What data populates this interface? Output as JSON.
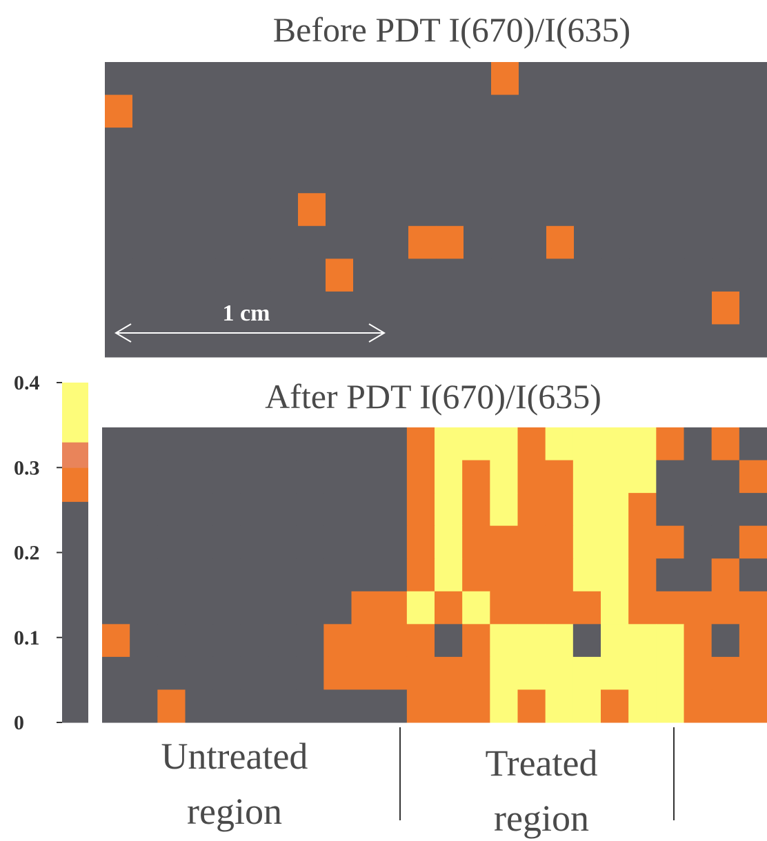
{
  "chart_data": [
    {
      "type": "heatmap",
      "title": "Before PDT  I(670)/I(635)",
      "annotation": "1 cm",
      "zlim": [
        0,
        0.4
      ],
      "z": [
        [
          0.05,
          0.05,
          0.05,
          0.05,
          0.05,
          0.05,
          0.05,
          0.05,
          0.05,
          0.05,
          0.05,
          0.05,
          0.05,
          0.05,
          0.29,
          0.05,
          0.05,
          0.2,
          0.05,
          0.05,
          0.2,
          0.05,
          0.05,
          0.05
        ],
        [
          0.28,
          0.05,
          0.05,
          0.05,
          0.05,
          0.05,
          0.05,
          0.05,
          0.05,
          0.05,
          0.05,
          0.05,
          0.05,
          0.05,
          0.05,
          0.05,
          0.05,
          0.05,
          0.05,
          0.05,
          0.05,
          0.05,
          0.05,
          0.05
        ],
        [
          0.05,
          0.05,
          0.05,
          0.05,
          0.05,
          0.05,
          0.05,
          0.05,
          0.05,
          0.05,
          0.05,
          0.05,
          0.05,
          0.05,
          0.05,
          0.05,
          0.05,
          0.05,
          0.05,
          0.05,
          0.05,
          0.05,
          0.05,
          0.05
        ],
        [
          0.05,
          0.05,
          0.05,
          0.05,
          0.05,
          0.05,
          0.05,
          0.05,
          0.05,
          0.05,
          0.05,
          0.05,
          0.05,
          0.05,
          0.2,
          0.05,
          0.05,
          0.05,
          0.05,
          0.05,
          0.05,
          0.05,
          0.05,
          0.05
        ],
        [
          0.05,
          0.05,
          0.05,
          0.05,
          0.05,
          0.05,
          0.05,
          0.28,
          0.05,
          0.05,
          0.05,
          0.05,
          0.05,
          0.05,
          0.05,
          0.05,
          0.05,
          0.05,
          0.05,
          0.05,
          0.05,
          0.05,
          0.05,
          0.05
        ],
        [
          0.05,
          0.05,
          0.05,
          0.05,
          0.05,
          0.05,
          0.2,
          0.05,
          0.2,
          0.05,
          0.05,
          0.28,
          0.27,
          0.05,
          0.05,
          0.05,
          0.27,
          0.05,
          0.05,
          0.05,
          0.05,
          0.05,
          0.05,
          0.05
        ],
        [
          0.05,
          0.05,
          0.05,
          0.05,
          0.05,
          0.05,
          0.05,
          0.05,
          0.27,
          0.05,
          0.05,
          0.05,
          0.05,
          0.05,
          0.05,
          0.05,
          0.05,
          0.05,
          0.05,
          0.05,
          0.05,
          0.05,
          0.05,
          0.05
        ],
        [
          0.05,
          0.05,
          0.05,
          0.05,
          0.05,
          0.05,
          0.05,
          0.05,
          0.05,
          0.05,
          0.05,
          0.05,
          0.05,
          0.05,
          0.05,
          0.05,
          0.05,
          0.05,
          0.05,
          0.05,
          0.22,
          0.05,
          0.29,
          0.05
        ],
        [
          0.05,
          0.05,
          0.05,
          0.05,
          0.05,
          0.05,
          0.05,
          0.05,
          0.05,
          0.05,
          0.05,
          0.05,
          0.05,
          0.05,
          0.05,
          0.05,
          0.05,
          0.05,
          0.05,
          0.05,
          0.05,
          0.05,
          0.05,
          0.05
        ]
      ]
    },
    {
      "type": "heatmap",
      "title": "After PDT  I(670)/I(635)",
      "region_labels": [
        [
          "Untreated",
          "region"
        ],
        [
          "Treated",
          "region"
        ]
      ],
      "zlim": [
        0,
        0.4
      ],
      "zticks": [
        0,
        0.1,
        0.2,
        0.3,
        0.4
      ],
      "z": [
        [
          0.05,
          0.05,
          0.05,
          0.05,
          0.05,
          0.05,
          0.05,
          0.05,
          0.05,
          0.05,
          0.05,
          0.3,
          0.37,
          0.33,
          0.36,
          0.3,
          0.37,
          0.38,
          0.37,
          0.36,
          0.29,
          0.05,
          0.28,
          0.05
        ],
        [
          0.05,
          0.05,
          0.05,
          0.05,
          0.05,
          0.05,
          0.05,
          0.05,
          0.05,
          0.05,
          0.05,
          0.28,
          0.35,
          0.3,
          0.37,
          0.3,
          0.29,
          0.37,
          0.38,
          0.36,
          0.05,
          0.05,
          0.05,
          0.28
        ],
        [
          0.05,
          0.05,
          0.22,
          0.05,
          0.05,
          0.05,
          0.05,
          0.05,
          0.05,
          0.05,
          0.05,
          0.27,
          0.36,
          0.29,
          0.38,
          0.3,
          0.29,
          0.36,
          0.38,
          0.3,
          0.05,
          0.05,
          0.05,
          0.05
        ],
        [
          0.05,
          0.05,
          0.05,
          0.05,
          0.05,
          0.05,
          0.05,
          0.05,
          0.05,
          0.05,
          0.05,
          0.3,
          0.37,
          0.3,
          0.29,
          0.28,
          0.3,
          0.37,
          0.37,
          0.29,
          0.28,
          0.05,
          0.05,
          0.3
        ],
        [
          0.05,
          0.05,
          0.05,
          0.05,
          0.05,
          0.05,
          0.05,
          0.05,
          0.2,
          0.05,
          0.05,
          0.3,
          0.36,
          0.3,
          0.29,
          0.3,
          0.29,
          0.37,
          0.38,
          0.28,
          0.05,
          0.05,
          0.29,
          0.05
        ],
        [
          0.05,
          0.05,
          0.05,
          0.05,
          0.05,
          0.05,
          0.05,
          0.05,
          0.05,
          0.28,
          0.3,
          0.36,
          0.3,
          0.35,
          0.3,
          0.29,
          0.3,
          0.3,
          0.36,
          0.3,
          0.3,
          0.28,
          0.29,
          0.28
        ],
        [
          0.3,
          0.05,
          0.05,
          0.05,
          0.05,
          0.05,
          0.05,
          0.05,
          0.29,
          0.3,
          0.3,
          0.29,
          0.05,
          0.3,
          0.36,
          0.37,
          0.35,
          0.05,
          0.37,
          0.38,
          0.36,
          0.3,
          0.05,
          0.29
        ],
        [
          0.05,
          0.25,
          0.05,
          0.05,
          0.05,
          0.05,
          0.05,
          0.05,
          0.28,
          0.3,
          0.29,
          0.3,
          0.29,
          0.3,
          0.37,
          0.35,
          0.36,
          0.37,
          0.38,
          0.36,
          0.37,
          0.3,
          0.29,
          0.3
        ],
        [
          0.05,
          0.05,
          0.28,
          0.05,
          0.05,
          0.05,
          0.05,
          0.05,
          0.05,
          0.05,
          0.05,
          0.3,
          0.29,
          0.3,
          0.37,
          0.3,
          0.36,
          0.37,
          0.3,
          0.36,
          0.38,
          0.3,
          0.29,
          0.3
        ]
      ]
    }
  ]
}
